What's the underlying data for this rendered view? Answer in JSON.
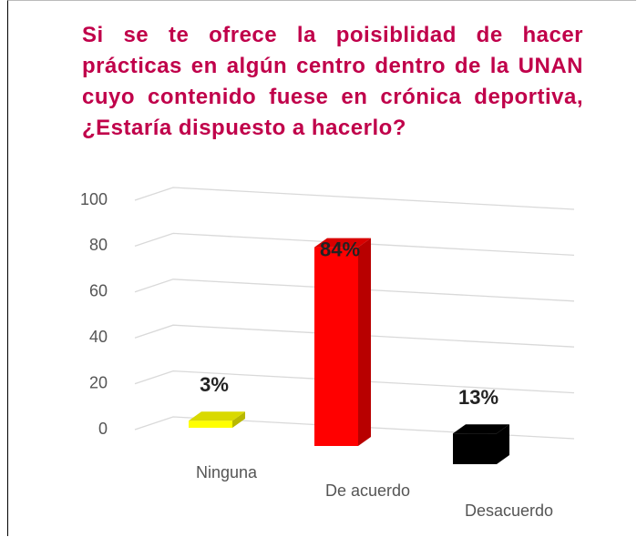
{
  "chart_data": {
    "type": "bar3d",
    "title": "Si se te ofrece la poisiblidad de hacer prácticas en algún centro dentro de la UNAN cuyo contenido fuese en crónica deportiva, ¿Estaría dispuesto a hacerlo?",
    "categories": [
      "Ninguna",
      "De acuerdo",
      "Desacuerdo"
    ],
    "values": [
      3,
      84,
      13
    ],
    "value_labels": [
      "3%",
      "84%",
      "13%"
    ],
    "colors": [
      "#ffff00",
      "#ff0000",
      "#000000"
    ],
    "ylim": [
      0,
      100
    ],
    "yticks": [
      0,
      20,
      40,
      60,
      80,
      100
    ],
    "grid": true
  }
}
